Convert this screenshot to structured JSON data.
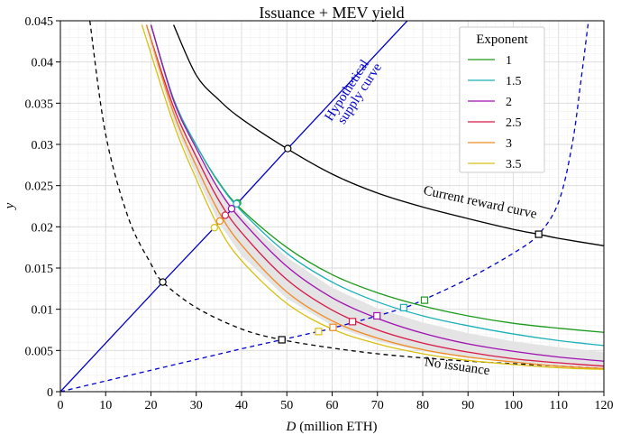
{
  "chart_data": {
    "type": "line",
    "title": "Issuance + MEV yield",
    "xlabel_var": "D",
    "xlabel_unit": "(million ETH)",
    "ylabel": "y",
    "xlim": [
      0,
      120
    ],
    "ylim": [
      0,
      0.045
    ],
    "x_ticks": [
      0,
      10,
      20,
      30,
      40,
      50,
      60,
      70,
      80,
      90,
      100,
      110,
      120
    ],
    "y_ticks": [
      {
        "value": 0,
        "label": "0"
      },
      {
        "value": 0.005,
        "label": "0.005"
      },
      {
        "value": 0.01,
        "label": "0.01"
      },
      {
        "value": 0.015,
        "label": "0.015"
      },
      {
        "value": 0.02,
        "label": "0.02"
      },
      {
        "value": 0.025,
        "label": "0.025"
      },
      {
        "value": 0.03,
        "label": "0.03"
      },
      {
        "value": 0.035,
        "label": "0.035"
      },
      {
        "value": 0.04,
        "label": "0.04"
      },
      {
        "value": 0.045,
        "label": "0.045"
      }
    ],
    "grid": true,
    "legend": {
      "title": "Exponent",
      "position": "top-right",
      "entries": [
        {
          "label": "1",
          "color": "#1a9a1a"
        },
        {
          "label": "1.5",
          "color": "#1ab0b8"
        },
        {
          "label": "2",
          "color": "#a010b0"
        },
        {
          "label": "2.5",
          "color": "#d81848"
        },
        {
          "label": "3",
          "color": "#f08a20"
        },
        {
          "label": "3.5",
          "color": "#d8c010"
        }
      ]
    },
    "series": [
      {
        "name": "1",
        "color": "#1a9a1a",
        "points": [
          [
            20,
            0.0445
          ],
          [
            25,
            0.0355
          ],
          [
            30,
            0.0299
          ],
          [
            35,
            0.0254
          ],
          [
            40,
            0.0221
          ],
          [
            50,
            0.0175
          ],
          [
            60,
            0.0142
          ],
          [
            70,
            0.012
          ],
          [
            80,
            0.0104
          ],
          [
            90,
            0.0092
          ],
          [
            100,
            0.0083
          ],
          [
            110,
            0.0077
          ],
          [
            120,
            0.0072
          ]
        ]
      },
      {
        "name": "1.5",
        "color": "#1ab0b8",
        "points": [
          [
            20,
            0.0445
          ],
          [
            25,
            0.0355
          ],
          [
            30,
            0.0299
          ],
          [
            35,
            0.0253
          ],
          [
            40,
            0.0219
          ],
          [
            50,
            0.0168
          ],
          [
            60,
            0.0133
          ],
          [
            70,
            0.0109
          ],
          [
            80,
            0.0092
          ],
          [
            90,
            0.008
          ],
          [
            100,
            0.007
          ],
          [
            110,
            0.0062
          ],
          [
            120,
            0.0056
          ]
        ]
      },
      {
        "name": "2",
        "color": "#a010b0",
        "points": [
          [
            20,
            0.0445
          ],
          [
            25,
            0.0353
          ],
          [
            30,
            0.0295
          ],
          [
            35,
            0.0245
          ],
          [
            40,
            0.0208
          ],
          [
            50,
            0.0152
          ],
          [
            60,
            0.0114
          ],
          [
            70,
            0.0089
          ],
          [
            80,
            0.0071
          ],
          [
            90,
            0.0058
          ],
          [
            100,
            0.0049
          ],
          [
            110,
            0.0042
          ],
          [
            120,
            0.0037
          ]
        ]
      },
      {
        "name": "2.5",
        "color": "#d81848",
        "points": [
          [
            19,
            0.0445
          ],
          [
            25,
            0.0345
          ],
          [
            30,
            0.0285
          ],
          [
            35,
            0.0232
          ],
          [
            40,
            0.0193
          ],
          [
            50,
            0.0136
          ],
          [
            60,
            0.0099
          ],
          [
            70,
            0.0075
          ],
          [
            80,
            0.0059
          ],
          [
            90,
            0.0048
          ],
          [
            100,
            0.004
          ],
          [
            110,
            0.0035
          ],
          [
            120,
            0.0031
          ]
        ]
      },
      {
        "name": "3",
        "color": "#f08a20",
        "points": [
          [
            19,
            0.0445
          ],
          [
            25,
            0.0338
          ],
          [
            30,
            0.0274
          ],
          [
            35,
            0.0218
          ],
          [
            40,
            0.0178
          ],
          [
            50,
            0.0121
          ],
          [
            60,
            0.0086
          ],
          [
            70,
            0.0065
          ],
          [
            80,
            0.0051
          ],
          [
            90,
            0.0042
          ],
          [
            100,
            0.0036
          ],
          [
            110,
            0.0031
          ],
          [
            120,
            0.0028
          ]
        ]
      },
      {
        "name": "3.5",
        "color": "#d8c010",
        "points": [
          [
            18,
            0.0445
          ],
          [
            25,
            0.0325
          ],
          [
            30,
            0.0258
          ],
          [
            35,
            0.0199
          ],
          [
            40,
            0.0159
          ],
          [
            50,
            0.0107
          ],
          [
            60,
            0.0076
          ],
          [
            70,
            0.0058
          ],
          [
            80,
            0.0046
          ],
          [
            90,
            0.0038
          ],
          [
            100,
            0.0033
          ],
          [
            110,
            0.0029
          ],
          [
            120,
            0.0027
          ]
        ]
      }
    ],
    "shaded_band": {
      "upper": [
        [
          18.5,
          0.0445
        ],
        [
          25,
          0.0343
        ],
        [
          30,
          0.029
        ],
        [
          35,
          0.0245
        ],
        [
          40,
          0.0213
        ],
        [
          50,
          0.0163
        ],
        [
          60,
          0.0126
        ],
        [
          70,
          0.0101
        ],
        [
          80,
          0.0084
        ],
        [
          90,
          0.0071
        ],
        [
          100,
          0.0061
        ],
        [
          110,
          0.0054
        ],
        [
          120,
          0.0048
        ]
      ],
      "lower": [
        [
          120,
          0.0029
        ],
        [
          110,
          0.0032
        ],
        [
          100,
          0.0036
        ],
        [
          90,
          0.0041
        ],
        [
          80,
          0.0049
        ],
        [
          70,
          0.0061
        ],
        [
          60,
          0.008
        ],
        [
          50,
          0.0113
        ],
        [
          40,
          0.0165
        ],
        [
          35,
          0.0205
        ],
        [
          30,
          0.0262
        ],
        [
          25,
          0.0328
        ],
        [
          18.5,
          0.0445
        ]
      ]
    },
    "reference_curves": [
      {
        "name": "current-reward-curve",
        "label": "Current reward curve",
        "style": "solid",
        "color": "#000000",
        "points": [
          [
            25,
            0.0445
          ],
          [
            30,
            0.0384
          ],
          [
            35,
            0.0354
          ],
          [
            40,
            0.0331
          ],
          [
            50,
            0.0295
          ],
          [
            60,
            0.0264
          ],
          [
            70,
            0.0241
          ],
          [
            80,
            0.0224
          ],
          [
            90,
            0.021
          ],
          [
            100,
            0.0197
          ],
          [
            105.6,
            0.0191
          ],
          [
            110,
            0.0186
          ],
          [
            120,
            0.0177
          ]
        ]
      },
      {
        "name": "no-issuance",
        "label": "No issuance",
        "style": "dashed",
        "color": "#000000",
        "points": [
          [
            6.5,
            0.045
          ],
          [
            10,
            0.0312
          ],
          [
            15,
            0.0211
          ],
          [
            20,
            0.0155
          ],
          [
            22.6,
            0.0133
          ],
          [
            30,
            0.0102
          ],
          [
            40,
            0.0076
          ],
          [
            48.9,
            0.0063
          ],
          [
            60,
            0.0053
          ],
          [
            70,
            0.0046
          ],
          [
            80,
            0.0041
          ],
          [
            90,
            0.0037
          ],
          [
            100,
            0.0034
          ],
          [
            110,
            0.0031
          ],
          [
            120,
            0.0028
          ]
        ]
      },
      {
        "name": "hypothetical-supply-curve",
        "label": "Hypothetical supply curve",
        "style": "solid",
        "color": "#0000cc",
        "points": [
          [
            0,
            0
          ],
          [
            22.6,
            0.0133
          ],
          [
            39,
            0.0228
          ],
          [
            50.2,
            0.0295
          ],
          [
            76.6,
            0.045
          ]
        ]
      },
      {
        "name": "supply-curve-dashed",
        "label": "",
        "style": "dashed",
        "color": "#0000cc",
        "points": [
          [
            0,
            0
          ],
          [
            20,
            0.0026
          ],
          [
            40,
            0.0052
          ],
          [
            48.9,
            0.0063
          ],
          [
            57,
            0.0073
          ],
          [
            60,
            0.0077
          ],
          [
            70,
            0.0092
          ],
          [
            76,
            0.0102
          ],
          [
            80,
            0.0111
          ],
          [
            90,
            0.0137
          ],
          [
            100,
            0.0168
          ],
          [
            105.6,
            0.0191
          ],
          [
            110,
            0.023
          ],
          [
            113,
            0.03
          ],
          [
            115,
            0.038
          ],
          [
            116.6,
            0.045
          ]
        ]
      }
    ],
    "markers": [
      {
        "x": 50.2,
        "y": 0.0295,
        "shape": "circle",
        "color": "#000000"
      },
      {
        "x": 22.6,
        "y": 0.0133,
        "shape": "circle",
        "color": "#000000"
      },
      {
        "x": 39.1,
        "y": 0.0229,
        "shape": "circle",
        "color": "#1a9a1a"
      },
      {
        "x": 38.9,
        "y": 0.0228,
        "shape": "circle",
        "color": "#1ab0b8"
      },
      {
        "x": 37.8,
        "y": 0.0222,
        "shape": "circle",
        "color": "#a010b0"
      },
      {
        "x": 36.4,
        "y": 0.0214,
        "shape": "circle",
        "color": "#d81848"
      },
      {
        "x": 35.2,
        "y": 0.0207,
        "shape": "circle",
        "color": "#f08a20"
      },
      {
        "x": 34.0,
        "y": 0.0199,
        "shape": "circle",
        "color": "#d8c010"
      },
      {
        "x": 105.6,
        "y": 0.0191,
        "shape": "square",
        "color": "#000000"
      },
      {
        "x": 80.4,
        "y": 0.0111,
        "shape": "square",
        "color": "#1a9a1a"
      },
      {
        "x": 75.8,
        "y": 0.0102,
        "shape": "square",
        "color": "#1ab0b8"
      },
      {
        "x": 69.9,
        "y": 0.0092,
        "shape": "square",
        "color": "#a010b0"
      },
      {
        "x": 64.5,
        "y": 0.0085,
        "shape": "square",
        "color": "#d81848"
      },
      {
        "x": 60.2,
        "y": 0.0078,
        "shape": "square",
        "color": "#f08a20"
      },
      {
        "x": 57.0,
        "y": 0.0073,
        "shape": "square",
        "color": "#d8c010"
      },
      {
        "x": 48.9,
        "y": 0.0063,
        "shape": "square",
        "color": "#000000"
      }
    ],
    "annotations": [
      {
        "name": "current-reward-curve-label",
        "text": "Current reward curve",
        "x": 92.5,
        "y": 0.0225,
        "rotate": 12
      },
      {
        "name": "no-issuance-label",
        "text": "No issuance",
        "x": 87.5,
        "y": 0.0026,
        "rotate": 8
      },
      {
        "name": "hypothetical-label-line1",
        "text": "Hypothetical",
        "x": 64.0,
        "y": 0.0363,
        "rotate": -57
      },
      {
        "name": "hypothetical-label-line2",
        "text": "supply curve",
        "x": 66.8,
        "y": 0.0359,
        "rotate": -57
      }
    ]
  }
}
